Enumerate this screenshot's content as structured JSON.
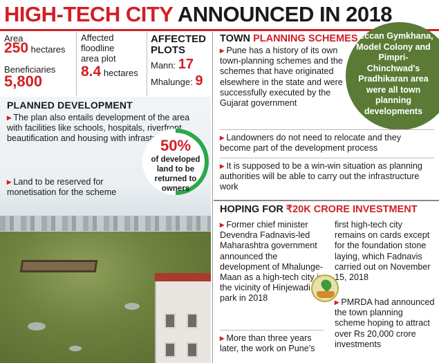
{
  "headline": {
    "part1": "HIGH-TECH CITY",
    "part2": "ANNOUNCED IN 2018"
  },
  "stats": {
    "area_label": "Area",
    "area_value": "250",
    "area_unit": "hectares",
    "beneficiaries_label": "Beneficiaries",
    "beneficiaries_value": "5,800",
    "floodline_label_1": "Affected",
    "floodline_label_2": "floodline",
    "floodline_label_3": "area plot",
    "floodline_value": "8.4",
    "floodline_unit": "hectares",
    "plots_title_1": "AFFECTED",
    "plots_title_2": "PLOTS",
    "mann_label": "Mann:",
    "mann_value": "17",
    "mhalunge_label": "Mhalunge:",
    "mhalunge_value": "9"
  },
  "planned": {
    "title": "PLANNED DEVELOPMENT",
    "bullet1": "The plan also entails development of the area with facilities like schools, hospitals, riverfront beautification and housing with infrastructure",
    "bullet2": "Land to be reserved for monetisation for the scheme",
    "percent": "50%",
    "percent_text": "of developed land to be returned to owners",
    "percent_fraction": 0.5
  },
  "town": {
    "title_part1": "TOWN",
    "title_part2": "PLANNING SCHEMES",
    "bullet1": "Pune has a history of its own town-planning schemes and the schemes that have originated elsewhere in the state and were successfully executed by the Gujarat government",
    "bullet2": "Landowners do not need to relocate and they become part of the development process",
    "bullet3": "It is supposed to be a win-win situation as planning authorities will be able to carry out the infrastructure work",
    "green_note": "Deccan Gymkhana, Model Colony and Pimpri-Chinchwad's Pradhikaran area were all town planning developments"
  },
  "hoping": {
    "title_part1": "HOPING FOR",
    "title_part2": "₹20K CRORE INVESTMENT",
    "bullet1": "Former chief minister Devendra Fadnavis-led Maharashtra government announced the development of Mhalunge-Maan as a high-tech city in the vicinity of Hinjewadi IT park in 2018",
    "bullet2": "More than three years later, the work on Pune's",
    "continued": "first high-tech city remains on cards except for the foundation stone laying, which Fadnavis carried out on November 15, 2018",
    "bullet3": "PMRDA had announced the town planning scheme hoping to attract over Rs 20,000 crore investments"
  },
  "colors": {
    "accent_red": "#d11f26",
    "green": "#5a7a35",
    "ring_green": "#2aa84a"
  }
}
